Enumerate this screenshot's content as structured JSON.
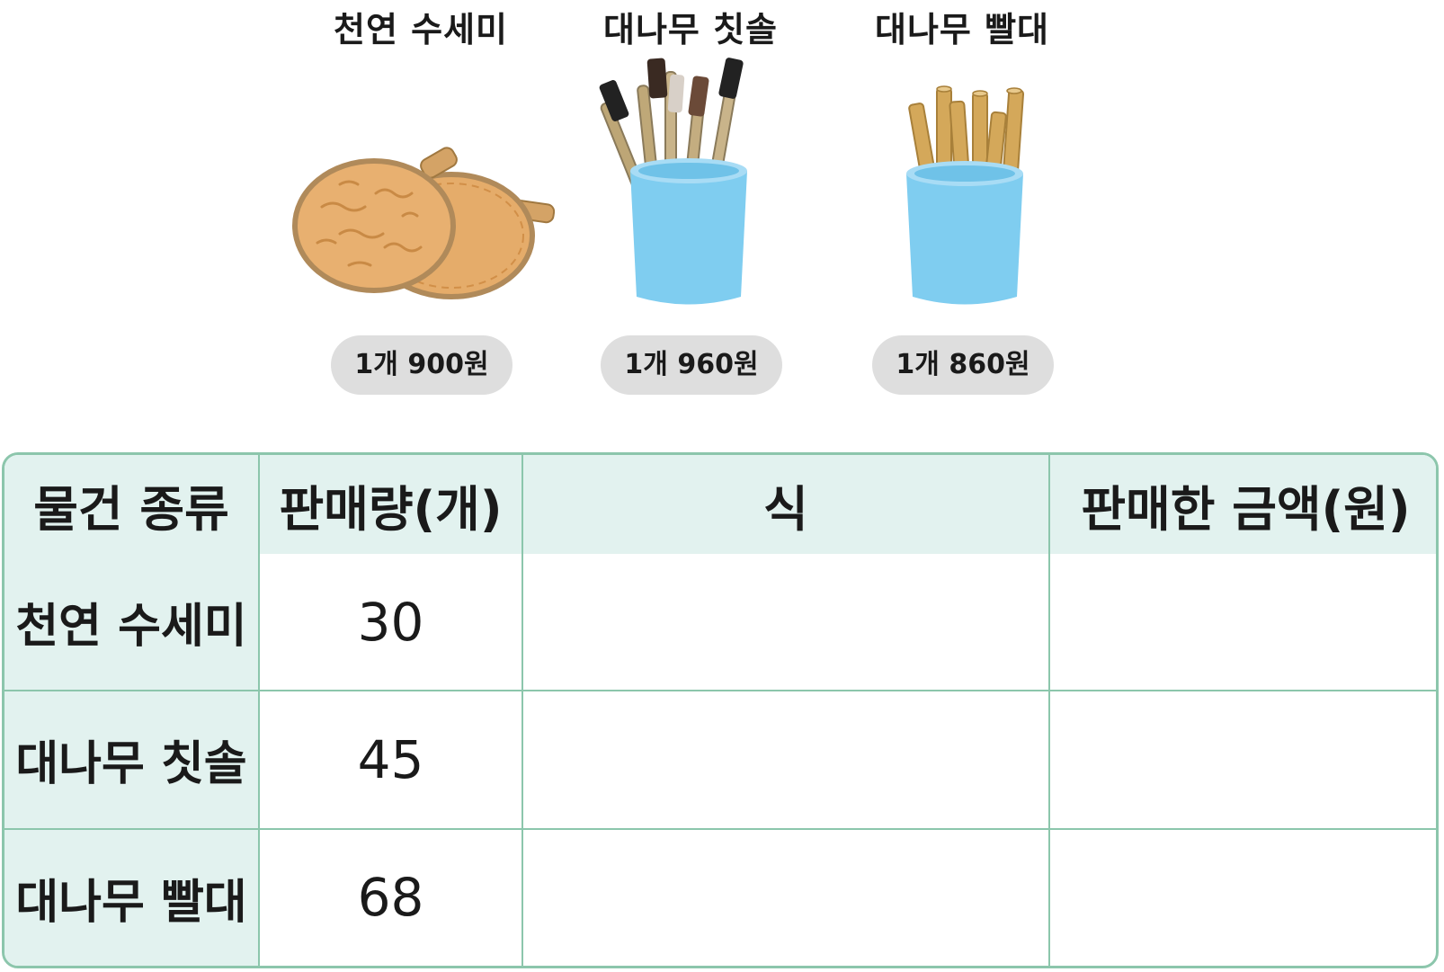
{
  "products": [
    {
      "name": "천연 수세미",
      "price": "1개 900원",
      "icon": "loofah-scrubber-icon"
    },
    {
      "name": "대나무 칫솔",
      "price": "1개 960원",
      "icon": "bamboo-toothbrush-cup-icon"
    },
    {
      "name": "대나무 빨대",
      "price": "1개 860원",
      "icon": "bamboo-straw-cup-icon"
    }
  ],
  "table": {
    "headers": [
      "물건 종류",
      "판매량(개)",
      "식",
      "판매한 금액(원)"
    ],
    "rows": [
      {
        "item": "천연 수세미",
        "qty": "30",
        "expr": "",
        "amount": ""
      },
      {
        "item": "대나무 칫솔",
        "qty": "45",
        "expr": "",
        "amount": ""
      },
      {
        "item": "대나무 빨대",
        "qty": "68",
        "expr": "",
        "amount": ""
      }
    ]
  },
  "colors": {
    "border": "#8cc6ac",
    "header_bg": "#e2f2ef",
    "price_pill_bg": "#dedede",
    "cup": "#7fcdf0",
    "bamboo": "#d4a85a"
  }
}
